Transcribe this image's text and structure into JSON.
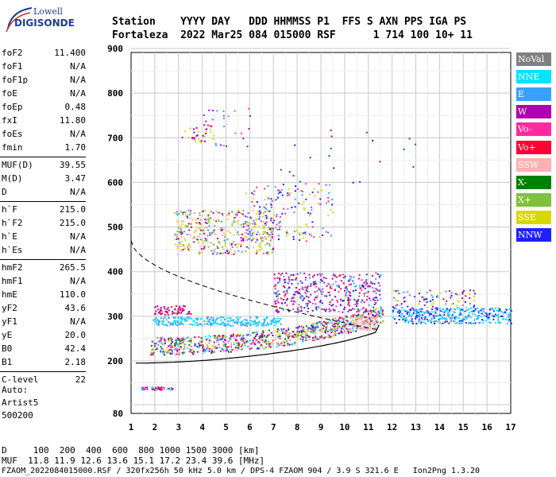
{
  "logo": {
    "top": "Lowell",
    "bottom": "DIGISONDE"
  },
  "header": {
    "line1": "Station    YYYY DAY   DDD HHMMSS P1  FFS S AXN PPS IGA PS",
    "line2": "Fortaleza  2022 Mar25 084 015000 RSF      1 714 100 10+ 11"
  },
  "params": [
    {
      "label": "foF2",
      "value": "11.400"
    },
    {
      "label": "foF1",
      "value": "N/A"
    },
    {
      "label": "foF1p",
      "value": "N/A"
    },
    {
      "label": "foE",
      "value": "N/A"
    },
    {
      "label": "foEp",
      "value": "0.48"
    },
    {
      "label": "fxI",
      "value": "11.80"
    },
    {
      "label": "foEs",
      "value": "N/A"
    },
    {
      "label": "fmin",
      "value": "1.70"
    },
    {
      "label": "MUF(D)",
      "value": "39.55"
    },
    {
      "label": "M(D)",
      "value": "3.47"
    },
    {
      "label": "D",
      "value": "N/A"
    },
    {
      "label": "h`F",
      "value": "215.0"
    },
    {
      "label": "h`F2",
      "value": "215.0"
    },
    {
      "label": "h`E",
      "value": "N/A"
    },
    {
      "label": "h`Es",
      "value": "N/A"
    },
    {
      "label": "hmF2",
      "value": "265.5"
    },
    {
      "label": "hmF1",
      "value": "N/A"
    },
    {
      "label": "hmE",
      "value": "110.0"
    },
    {
      "label": "yF2",
      "value": "43.6"
    },
    {
      "label": "yF1",
      "value": "N/A"
    },
    {
      "label": "yE",
      "value": "20.0"
    },
    {
      "label": "B0",
      "value": "42.4"
    },
    {
      "label": "B1",
      "value": "2.18"
    },
    {
      "label": "C-level",
      "value": "22"
    }
  ],
  "auto": [
    "Auto:",
    "Artist5",
    "500200"
  ],
  "legend": [
    {
      "label": "NoVal",
      "color": "#808080"
    },
    {
      "label": "NNE",
      "color": "#00e5ff"
    },
    {
      "label": "E",
      "color": "#3aa0ff"
    },
    {
      "label": "W",
      "color": "#b000b0"
    },
    {
      "label": "Vo-",
      "color": "#ff2aa0"
    },
    {
      "label": "Vo+",
      "color": "#ff0033"
    },
    {
      "label": "SSW",
      "color": "#ffb0b0"
    },
    {
      "label": "X-",
      "color": "#008000"
    },
    {
      "label": "X+",
      "color": "#80c040"
    },
    {
      "label": "SSE",
      "color": "#d8d800"
    },
    {
      "label": "NNW",
      "color": "#2020ff"
    }
  ],
  "chart_data": {
    "type": "scatter",
    "x_ticks": [
      "1",
      "2",
      "3",
      "4",
      "5",
      "6",
      "7",
      "8",
      "9",
      "10",
      "11",
      "12",
      "13",
      "14",
      "15",
      "16",
      "17"
    ],
    "y_ticks": [
      "80",
      "200",
      "300",
      "400",
      "500",
      "600",
      "700",
      "800",
      "900"
    ],
    "xlim": [
      1,
      17
    ],
    "ylim": [
      80,
      900
    ],
    "grid": true
  },
  "bottom": {
    "line1": "D     100  200  400  600  800 1000 1500 3000 [km]",
    "line2": "MUF  11.8 11.9 12.6 13.6 15.1 17.2 23.4 39.6 [MHz]",
    "line3": "FZAOM_2022084015000.RSF / 320fx256h 50 kHz 5.0 km / DPS-4 FZAOM 904 / 3.9 S 321.6 E   Ion2Png 1.3.20"
  }
}
